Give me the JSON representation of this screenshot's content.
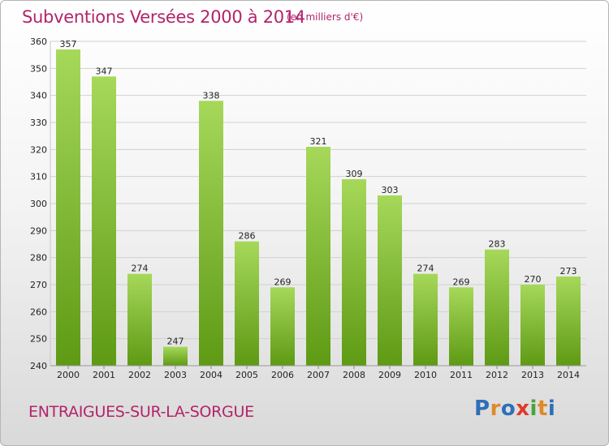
{
  "header": {
    "title": "Subventions Versées 2000 à 2014",
    "unit_note": "(en milliers d'€)"
  },
  "footer": {
    "commune": "ENTRAIGUES-SUR-LA-SORGUE",
    "brand": "Proxiti",
    "brand_letters": [
      {
        "ch": "P",
        "color": "#2d6fb8"
      },
      {
        "ch": "r",
        "color": "#e0892a"
      },
      {
        "ch": "o",
        "color": "#2d6fb8"
      },
      {
        "ch": "x",
        "color": "#e03a2a"
      },
      {
        "ch": "i",
        "color": "#4aa33a"
      },
      {
        "ch": "t",
        "color": "#e0892a"
      },
      {
        "ch": "i",
        "color": "#2d6fb8"
      }
    ]
  },
  "colors": {
    "title": "#b3246a",
    "bar_light": "#a6d85a",
    "bar_dark": "#5e9a14",
    "grid": "#d0d0d0"
  },
  "chart_data": {
    "type": "bar",
    "title": "Subventions Versées 2000 à 2014",
    "subtitle": "(en milliers d'€)",
    "xlabel": "",
    "ylabel": "",
    "categories": [
      "2000",
      "2001",
      "2002",
      "2003",
      "2004",
      "2005",
      "2006",
      "2007",
      "2008",
      "2009",
      "2010",
      "2011",
      "2012",
      "2013",
      "2014"
    ],
    "values": [
      357,
      347,
      274,
      247,
      338,
      286,
      269,
      321,
      309,
      303,
      274,
      269,
      283,
      270,
      273
    ],
    "ylim": [
      240,
      360
    ],
    "yticks": [
      240,
      250,
      260,
      270,
      280,
      290,
      300,
      310,
      320,
      330,
      340,
      350,
      360
    ],
    "grid": true,
    "data_labels": true
  }
}
